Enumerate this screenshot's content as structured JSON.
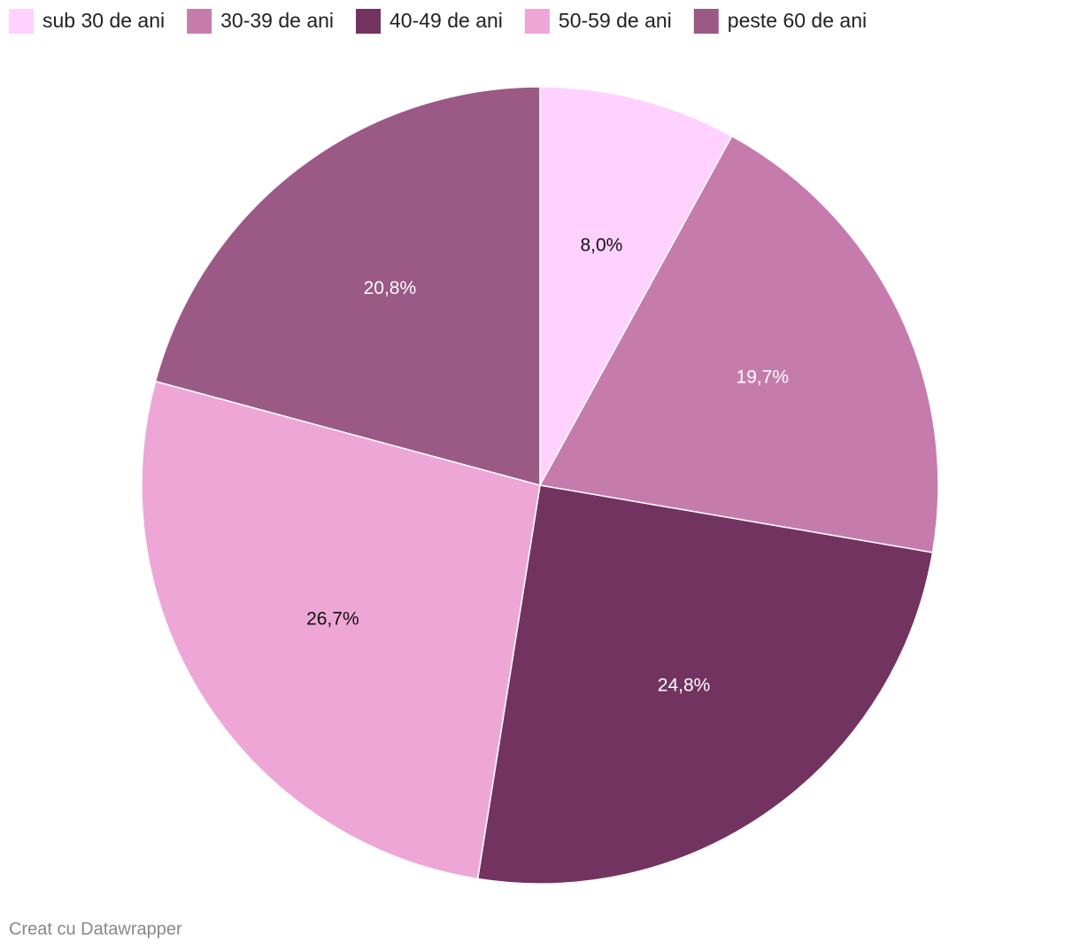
{
  "chart_data": {
    "type": "pie",
    "categories": [
      "sub 30 de ani",
      "30-39 de ani",
      "40-49 de ani",
      "50-59 de ani",
      "peste 60 de ani"
    ],
    "values": [
      8.0,
      19.7,
      24.8,
      26.7,
      20.8
    ],
    "value_labels": [
      "8,0%",
      "19,7%",
      "24,8%",
      "26,7%",
      "20,8%"
    ],
    "colors": [
      "#ffd1ff",
      "#c57cad",
      "#733360",
      "#eea6d6",
      "#9b5985"
    ],
    "legend": "top-left",
    "credit": "Creat cu Datawrapper"
  }
}
